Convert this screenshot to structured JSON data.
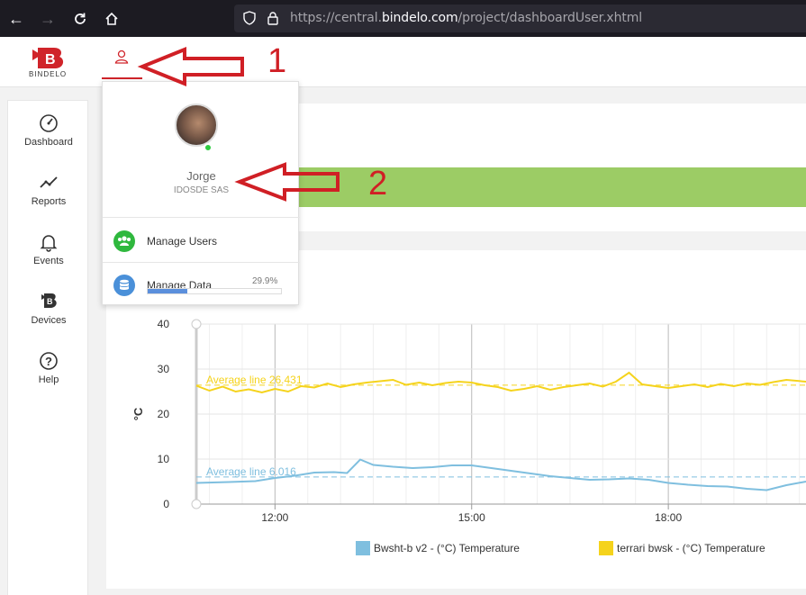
{
  "browser": {
    "url_prefix": "https://central.",
    "url_host": "bindelo.com",
    "url_path": "/project/dashboardUser.xhtml",
    "nav": [
      "back-icon",
      "forward-icon",
      "reload-icon",
      "home-icon"
    ]
  },
  "header": {
    "logo_text": "BINDELO",
    "accent": "#d0242a"
  },
  "sidebar": {
    "items": [
      {
        "label": "Dashboard",
        "icon": "gauge-icon"
      },
      {
        "label": "Reports",
        "icon": "trend-icon"
      },
      {
        "label": "Events",
        "icon": "bell-icon"
      },
      {
        "label": "Devices",
        "icon": "device-b-icon"
      },
      {
        "label": "Help",
        "icon": "question-icon"
      }
    ]
  },
  "user_menu": {
    "name": "Jorge",
    "company": "IDOSDE SAS",
    "status": "online",
    "items": [
      {
        "label": "Manage Users",
        "icon": "users-icon",
        "color": "#2fb83e"
      },
      {
        "label": "Manage Data",
        "icon": "database-icon",
        "color": "#4a90d9",
        "percent_text": "29.9%",
        "progress": 0.299
      }
    ]
  },
  "annotations": {
    "first": "1",
    "second": "2",
    "color": "#d01f25"
  },
  "chart_data": {
    "type": "line",
    "ylabel": "°C",
    "ylim": [
      0,
      40
    ],
    "y_ticks": [
      "0",
      "10",
      "20",
      "30",
      "40"
    ],
    "x_ticks": [
      "12:00",
      "15:00",
      "18:00"
    ],
    "x_range_hours": [
      10.8,
      19.8
    ],
    "series": [
      {
        "name": "Bwsht-b v2 - (°C) Temperature",
        "color": "#7fbfdf",
        "average_label": "Average line 6.016",
        "average": 6.016,
        "points": [
          [
            10.8,
            4.7
          ],
          [
            11.3,
            4.9
          ],
          [
            11.7,
            5.1
          ],
          [
            12.0,
            5.8
          ],
          [
            12.3,
            6.3
          ],
          [
            12.6,
            7.0
          ],
          [
            12.9,
            7.1
          ],
          [
            13.1,
            6.9
          ],
          [
            13.3,
            9.9
          ],
          [
            13.5,
            8.7
          ],
          [
            13.8,
            8.3
          ],
          [
            14.1,
            8.0
          ],
          [
            14.4,
            8.2
          ],
          [
            14.7,
            8.6
          ],
          [
            15.0,
            8.6
          ],
          [
            15.3,
            8.0
          ],
          [
            15.6,
            7.4
          ],
          [
            15.9,
            6.8
          ],
          [
            16.2,
            6.2
          ],
          [
            16.5,
            5.8
          ],
          [
            16.8,
            5.4
          ],
          [
            17.1,
            5.5
          ],
          [
            17.4,
            5.7
          ],
          [
            17.7,
            5.4
          ],
          [
            18.0,
            4.7
          ],
          [
            18.3,
            4.3
          ],
          [
            18.6,
            4.0
          ],
          [
            18.9,
            3.9
          ],
          [
            19.2,
            3.4
          ],
          [
            19.5,
            3.1
          ],
          [
            19.8,
            4.2
          ],
          [
            20.1,
            5.0
          ]
        ]
      },
      {
        "name": "terrari bwsk - (°C) Temperature",
        "color": "#f5d31c",
        "average_label": "Average line 26.431",
        "average": 26.431,
        "points": [
          [
            10.8,
            26.3
          ],
          [
            11.0,
            25.2
          ],
          [
            11.2,
            26.1
          ],
          [
            11.4,
            25.0
          ],
          [
            11.6,
            25.5
          ],
          [
            11.8,
            24.8
          ],
          [
            12.0,
            25.6
          ],
          [
            12.2,
            25.0
          ],
          [
            12.4,
            26.2
          ],
          [
            12.6,
            25.9
          ],
          [
            12.8,
            26.8
          ],
          [
            13.0,
            26.0
          ],
          [
            13.2,
            26.6
          ],
          [
            13.4,
            27.0
          ],
          [
            13.6,
            27.3
          ],
          [
            13.8,
            27.6
          ],
          [
            14.0,
            26.5
          ],
          [
            14.2,
            27.0
          ],
          [
            14.4,
            26.4
          ],
          [
            14.6,
            26.9
          ],
          [
            14.8,
            27.2
          ],
          [
            15.0,
            27.0
          ],
          [
            15.2,
            26.4
          ],
          [
            15.4,
            26.0
          ],
          [
            15.6,
            25.2
          ],
          [
            15.8,
            25.6
          ],
          [
            16.0,
            26.2
          ],
          [
            16.2,
            25.4
          ],
          [
            16.4,
            26.0
          ],
          [
            16.6,
            26.4
          ],
          [
            16.8,
            26.8
          ],
          [
            17.0,
            26.1
          ],
          [
            17.2,
            27.2
          ],
          [
            17.4,
            29.2
          ],
          [
            17.6,
            26.6
          ],
          [
            17.8,
            26.2
          ],
          [
            18.0,
            25.8
          ],
          [
            18.2,
            26.2
          ],
          [
            18.4,
            26.6
          ],
          [
            18.6,
            26.0
          ],
          [
            18.8,
            26.7
          ],
          [
            19.0,
            26.2
          ],
          [
            19.2,
            26.8
          ],
          [
            19.4,
            26.5
          ],
          [
            19.6,
            27.1
          ],
          [
            19.8,
            27.6
          ],
          [
            20.1,
            27.2
          ]
        ]
      }
    ]
  }
}
